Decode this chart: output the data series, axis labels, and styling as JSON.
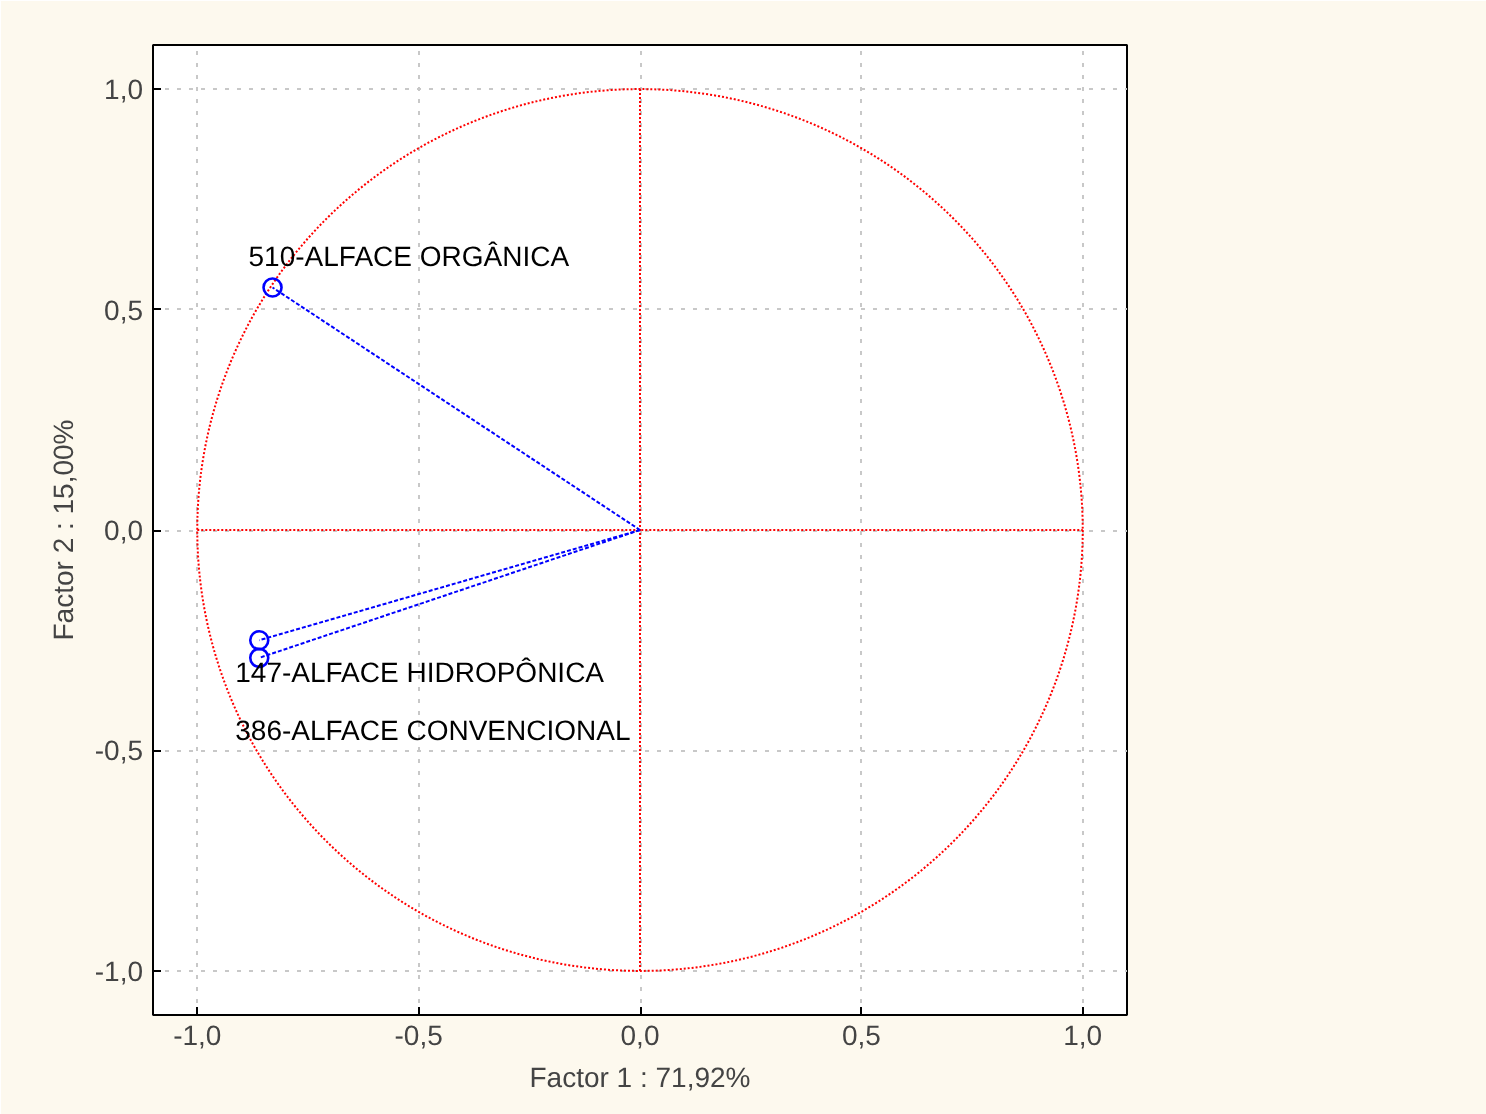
{
  "chart_data": {
    "type": "scatter",
    "xlabel": "Factor 1 : 71,92%",
    "ylabel": "Factor 2 : 15,00%",
    "xlim": [
      -1.1,
      1.1
    ],
    "ylim": [
      -1.1,
      1.1
    ],
    "xticks": [
      {
        "value": -1.0,
        "label": "-1,0"
      },
      {
        "value": -0.5,
        "label": "-0,5"
      },
      {
        "value": 0.0,
        "label": "0,0"
      },
      {
        "value": 0.5,
        "label": "0,5"
      },
      {
        "value": 1.0,
        "label": "1,0"
      }
    ],
    "yticks": [
      {
        "value": -1.0,
        "label": "-1,0"
      },
      {
        "value": -0.5,
        "label": "-0,5"
      },
      {
        "value": 0.0,
        "label": "0,0"
      },
      {
        "value": 0.5,
        "label": "0,5"
      },
      {
        "value": 1.0,
        "label": "1,0"
      }
    ],
    "grid": true,
    "series": [
      {
        "type": "line",
        "color": "#0000ff",
        "line_style": "dotted",
        "x": [
          0.0,
          -0.83
        ],
        "values": [
          0.0,
          0.55
        ]
      },
      {
        "type": "line",
        "color": "#0000ff",
        "line_style": "dotted",
        "x": [
          0.0,
          -0.86
        ],
        "values": [
          0.0,
          -0.25
        ]
      },
      {
        "type": "line",
        "color": "#0000ff",
        "line_style": "dotted",
        "x": [
          0.0,
          -0.86
        ],
        "values": [
          0.0,
          -0.29
        ]
      },
      {
        "color": "#0000ff",
        "marker": "circle",
        "x": [
          -0.83,
          -0.86,
          -0.86
        ],
        "values": [
          0.55,
          -0.25,
          -0.29
        ]
      }
    ],
    "annotations": [
      "510-ALFACE ORGÂNICA",
      "147-ALFACE HIDROPÔNICA",
      "386-ALFACE CONVENCIONAL"
    ]
  }
}
